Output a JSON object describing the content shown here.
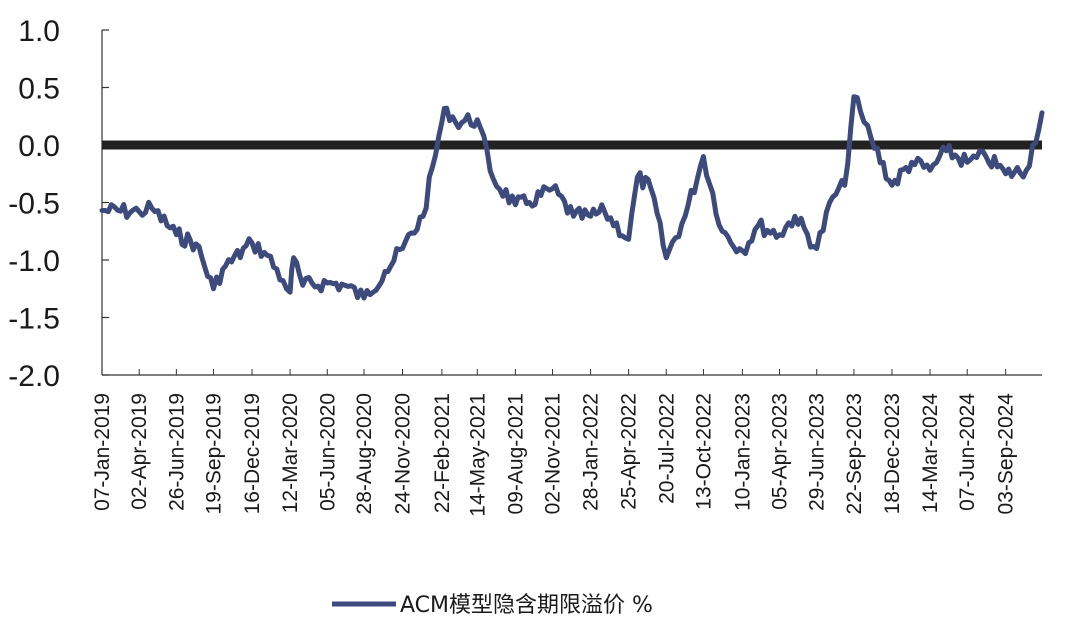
{
  "chart_data": {
    "type": "line",
    "title": "",
    "xlabel": "",
    "ylabel": "",
    "ylim": [
      -2.0,
      1.0
    ],
    "yticks": [
      "1.0",
      "0.5",
      "0.0",
      "-0.5",
      "-1.0",
      "-1.5",
      "-2.0"
    ],
    "yticks_values": [
      1.0,
      0.5,
      0.0,
      -0.5,
      -1.0,
      -1.5,
      -2.0
    ],
    "xticks": [
      "07-Jan-2019",
      "02-Apr-2019",
      "26-Jun-2019",
      "19-Sep-2019",
      "16-Dec-2019",
      "12-Mar-2020",
      "05-Jun-2020",
      "28-Aug-2020",
      "24-Nov-2020",
      "22-Feb-2021",
      "14-May-2021",
      "09-Aug-2021",
      "02-Nov-2021",
      "28-Jan-2022",
      "25-Apr-2022",
      "20-Jul-2022",
      "13-Oct-2022",
      "10-Jan-2023",
      "05-Apr-2023",
      "29-Jun-2023",
      "22-Sep-2023",
      "18-Dec-2023",
      "14-Mar-2024",
      "07-Jun-2024",
      "03-Sep-2024"
    ],
    "reference_line": {
      "y": 0.0,
      "color": "#222222"
    },
    "legend": {
      "position": "bottom"
    },
    "grid": false,
    "series": [
      {
        "name": "ACM模型隐含期限溢价 %",
        "color": "#3D4A7C",
        "x": [
          "07-Jan-2019",
          "02-Apr-2019",
          "01-May-2019",
          "26-Jun-2019",
          "10-Aug-2019",
          "19-Sep-2019",
          "10-Oct-2019",
          "16-Dec-2019",
          "20-Jan-2020",
          "25-Feb-2020",
          "12-Mar-2020",
          "20-Mar-2020",
          "10-Apr-2020",
          "05-Jun-2020",
          "15-Jul-2020",
          "28-Aug-2020",
          "15-Oct-2020",
          "24-Nov-2020",
          "10-Jan-2021",
          "22-Feb-2021",
          "05-Mar-2021",
          "25-Mar-2021",
          "14-May-2021",
          "20-Jun-2021",
          "09-Aug-2021",
          "10-Sep-2021",
          "02-Nov-2021",
          "20-Dec-2021",
          "28-Jan-2022",
          "01-Mar-2022",
          "25-Apr-2022",
          "15-May-2022",
          "15-Jun-2022",
          "20-Jul-2022",
          "01-Sep-2022",
          "13-Oct-2022",
          "25-Nov-2022",
          "10-Jan-2023",
          "15-Feb-2023",
          "05-Apr-2023",
          "10-May-2023",
          "29-Jun-2023",
          "05-Aug-2023",
          "01-Sep-2023",
          "22-Sep-2023",
          "15-Oct-2023",
          "01-Nov-2023",
          "18-Dec-2023",
          "01-Feb-2024",
          "14-Mar-2024",
          "20-Apr-2024",
          "07-Jun-2024",
          "20-Jul-2024",
          "03-Sep-2024",
          "20-Oct-2024",
          "25-Nov-2024"
        ],
        "values": [
          -0.57,
          -0.58,
          -0.55,
          -0.78,
          -0.86,
          -1.25,
          -1.08,
          -0.85,
          -0.96,
          -1.18,
          -1.28,
          -0.98,
          -1.22,
          -1.2,
          -1.22,
          -1.33,
          -1.1,
          -0.9,
          -0.62,
          0.2,
          0.32,
          0.2,
          0.22,
          -0.3,
          -0.52,
          -0.5,
          -0.38,
          -0.62,
          -0.62,
          -0.58,
          -0.82,
          -0.28,
          -0.38,
          -0.98,
          -0.62,
          -0.1,
          -0.75,
          -0.92,
          -0.7,
          -0.78,
          -0.62,
          -0.9,
          -0.45,
          -0.35,
          0.42,
          0.2,
          0.05,
          -0.35,
          -0.15,
          -0.22,
          -0.05,
          -0.15,
          -0.1,
          -0.25,
          -0.22,
          0.28
        ]
      }
    ]
  }
}
